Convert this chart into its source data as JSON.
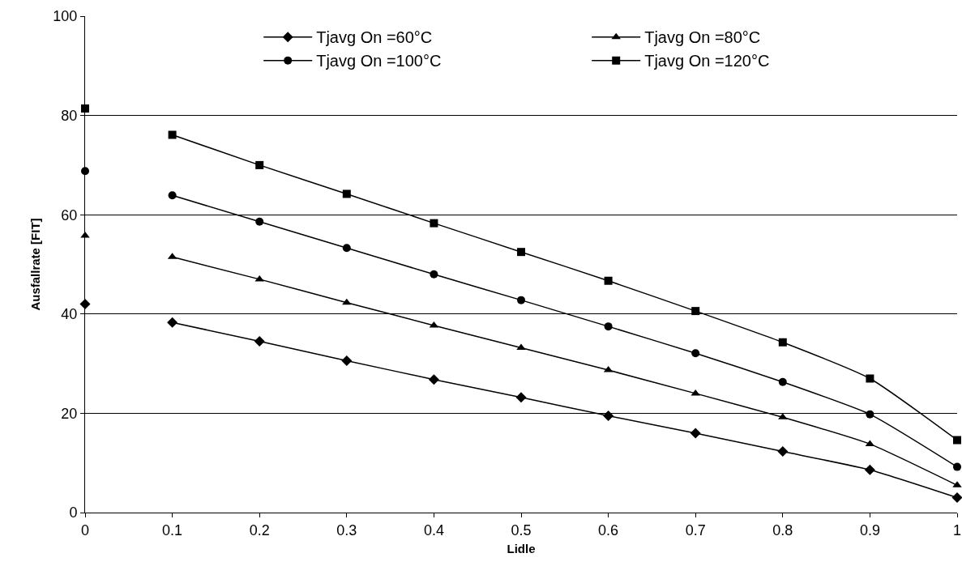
{
  "chart_data": {
    "type": "line",
    "xlabel": "Lidle",
    "ylabel": "Ausfallrate [FIT]",
    "x": [
      0,
      0.05,
      0.1,
      0.2,
      0.3,
      0.4,
      0.5,
      0.6,
      0.7,
      0.8,
      0.9,
      1
    ],
    "series": [
      {
        "name": "Tjavg On =60°C",
        "color": "#000000",
        "marker": "diamond",
        "values": [
          42,
          null,
          38.3,
          34.5,
          30.6,
          26.8,
          23.2,
          19.5,
          16,
          12.3,
          8.6,
          3
        ]
      },
      {
        "name": "Tjavg On =80°C",
        "color": "#000000",
        "marker": "triangle",
        "values": [
          55.8,
          null,
          51.5,
          47,
          42.3,
          37.7,
          33.2,
          28.7,
          24,
          19.2,
          13.8,
          5.5
        ]
      },
      {
        "name": "Tjavg On =100°C",
        "color": "#000000",
        "marker": "circle",
        "values": [
          68.8,
          null,
          63.9,
          58.6,
          53.3,
          48,
          42.8,
          37.5,
          32.1,
          26.3,
          19.8,
          9.2
        ]
      },
      {
        "name": "Tjavg On =120°C",
        "color": "#000000",
        "marker": "square",
        "values": [
          81.4,
          null,
          76.1,
          70,
          64.2,
          58.3,
          52.5,
          46.7,
          40.6,
          34.3,
          27,
          14.6
        ]
      }
    ],
    "xlim": [
      0,
      1
    ],
    "xticks": [
      0,
      0.1,
      0.2,
      0.3,
      0.4,
      0.5,
      0.6,
      0.7,
      0.8,
      0.9,
      1
    ],
    "ylim": [
      0,
      100
    ],
    "yticks": [
      0,
      20,
      40,
      60,
      80,
      100
    ],
    "grid": "y",
    "legend": "top",
    "line_style": "solid"
  }
}
